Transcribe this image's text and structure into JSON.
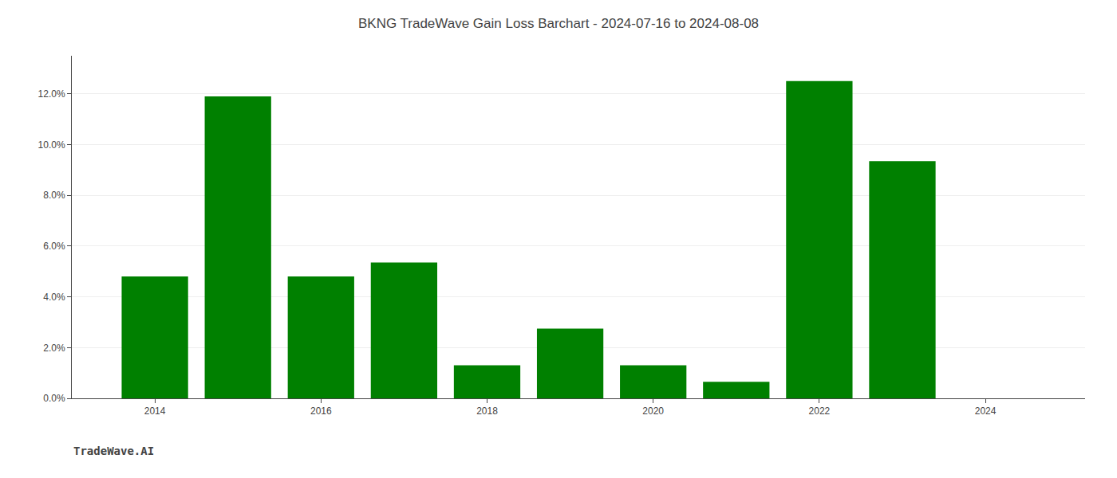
{
  "chart_data": {
    "type": "bar",
    "title": "BKNG TradeWave Gain Loss Barchart - 2024-07-16 to 2024-08-08",
    "annotations": [
      "TradeWave.AI"
    ],
    "x": [
      2014,
      2015,
      2016,
      2017,
      2018,
      2019,
      2020,
      2021,
      2022,
      2023,
      2024
    ],
    "values": [
      0.048,
      0.119,
      0.048,
      0.0535,
      0.013,
      0.0275,
      0.013,
      0.0065,
      0.125,
      0.0935,
      0.0
    ],
    "color": "#008000",
    "xlim": [
      2013.0,
      2025.2
    ],
    "xticks": [
      2014,
      2016,
      2018,
      2020,
      2022,
      2024
    ],
    "ylim": [
      0,
      0.135
    ],
    "yticks": [
      {
        "value": 0.0,
        "label": "0.0%"
      },
      {
        "value": 0.02,
        "label": "2.0%"
      },
      {
        "value": 0.04,
        "label": "4.0%"
      },
      {
        "value": 0.06,
        "label": "6.0%"
      },
      {
        "value": 0.08,
        "label": "8.0%"
      },
      {
        "value": 0.1,
        "label": "10.0%"
      },
      {
        "value": 0.12,
        "label": "12.0%"
      }
    ],
    "grid": "y"
  }
}
